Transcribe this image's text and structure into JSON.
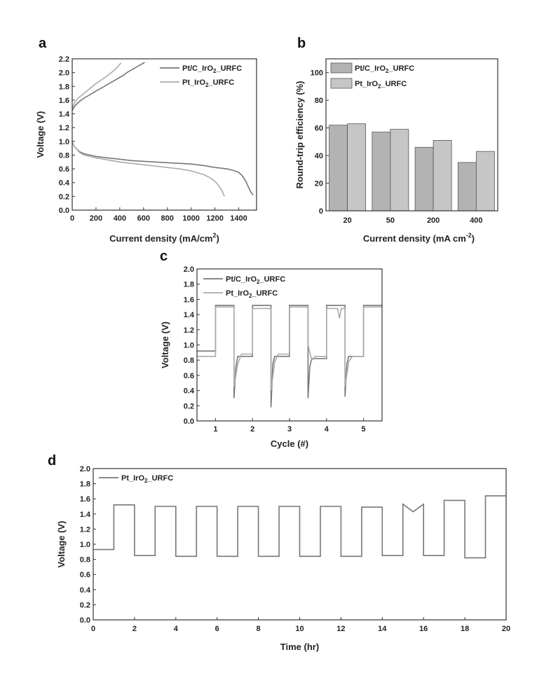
{
  "colors": {
    "series1": "#777777",
    "series2": "#aaaaaa",
    "bar1": "#b3b3b3",
    "bar2": "#c6c6c6",
    "axis": "#333333"
  },
  "chart_data": [
    {
      "id": "a",
      "panel_label": "a",
      "type": "line",
      "xlabel": "Current density (mA/cm",
      "xlabel_sup": "2",
      "ylabel": "Voltage (V)",
      "xlim": [
        0,
        1550
      ],
      "ylim": [
        0,
        2.2
      ],
      "xticks": [
        "0",
        "200",
        "400",
        "600",
        "800",
        "1000",
        "1200",
        "1400"
      ],
      "yticks": [
        "0.0",
        "0.2",
        "0.4",
        "0.6",
        "0.8",
        "1.0",
        "1.2",
        "1.4",
        "1.6",
        "1.8",
        "2.0",
        "2.2"
      ],
      "legend_position": "top-right",
      "series": [
        {
          "name_base": "Pt/C_IrO",
          "name_sub": "2",
          "name_suffix": "_URFC",
          "name": "Pt/C_IrO2_URFC",
          "color": "#777777",
          "segments": [
            {
              "x": [
                0,
                25,
                60,
                100,
                150,
                200,
                250,
                300,
                350,
                400,
                430,
                460,
                500,
                540,
                580,
                610
              ],
              "y": [
                1.45,
                1.52,
                1.58,
                1.63,
                1.68,
                1.73,
                1.78,
                1.83,
                1.88,
                1.93,
                1.96,
                2.0,
                2.04,
                2.08,
                2.12,
                2.15
              ]
            },
            {
              "x": [
                0,
                10,
                30,
                60,
                100,
                200,
                300,
                400,
                500,
                600,
                700,
                800,
                900,
                1000,
                1100,
                1200,
                1300,
                1350,
                1400,
                1430,
                1460,
                1480,
                1500,
                1520
              ],
              "y": [
                1.0,
                0.95,
                0.9,
                0.85,
                0.82,
                0.78,
                0.76,
                0.74,
                0.72,
                0.71,
                0.7,
                0.69,
                0.68,
                0.67,
                0.65,
                0.62,
                0.6,
                0.58,
                0.55,
                0.5,
                0.42,
                0.34,
                0.27,
                0.22
              ]
            }
          ]
        },
        {
          "name_base": "Pt_IrO",
          "name_sub": "2",
          "name_suffix": "_URFC",
          "name": "Pt_IrO2_URFC",
          "color": "#aaaaaa",
          "segments": [
            {
              "x": [
                0,
                20,
                50,
                100,
                150,
                200,
                250,
                300,
                350,
                380,
                410
              ],
              "y": [
                1.48,
                1.56,
                1.63,
                1.7,
                1.77,
                1.84,
                1.9,
                1.96,
                2.03,
                2.08,
                2.14
              ]
            },
            {
              "x": [
                0,
                10,
                30,
                60,
                100,
                200,
                300,
                400,
                500,
                600,
                700,
                800,
                900,
                1000,
                1100,
                1150,
                1200,
                1230,
                1260,
                1280
              ],
              "y": [
                1.0,
                0.95,
                0.9,
                0.84,
                0.8,
                0.76,
                0.73,
                0.7,
                0.68,
                0.66,
                0.64,
                0.62,
                0.6,
                0.57,
                0.52,
                0.48,
                0.42,
                0.36,
                0.28,
                0.2
              ]
            }
          ]
        }
      ]
    },
    {
      "id": "b",
      "panel_label": "b",
      "type": "bar",
      "xlabel": "Current density (mA cm",
      "xlabel_sup": "-2",
      "xlabel_close": ")",
      "ylabel": "Round-trip efficiency (%)",
      "categories": [
        "20",
        "50",
        "200",
        "400"
      ],
      "ylim": [
        0,
        110
      ],
      "yticks": [
        "0",
        "20",
        "40",
        "60",
        "80",
        "100"
      ],
      "legend_position": "top-left",
      "series": [
        {
          "name_base": "Pt/C_IrO",
          "name_sub": "2",
          "name_suffix": "_URFC",
          "name": "Pt/C_IrO2_URFC",
          "color": "#b3b3b3",
          "values": [
            62,
            57,
            46,
            35
          ]
        },
        {
          "name_base": "Pt_IrO",
          "name_sub": "2",
          "name_suffix": "_URFC",
          "name": "Pt_IrO2_URFC",
          "color": "#c6c6c6",
          "values": [
            63,
            59,
            51,
            43
          ]
        }
      ]
    },
    {
      "id": "c",
      "panel_label": "c",
      "type": "line",
      "xlabel": "Cycle (#)",
      "ylabel": "Voltage (V)",
      "xlim": [
        0.5,
        5.5
      ],
      "ylim": [
        0,
        2.0
      ],
      "xtick_values": [
        1,
        2,
        3,
        4,
        5
      ],
      "xticks": [
        "1",
        "2",
        "3",
        "4",
        "5"
      ],
      "yticks": [
        "0.0",
        "0.2",
        "0.4",
        "0.6",
        "0.8",
        "1.0",
        "1.2",
        "1.4",
        "1.6",
        "1.8",
        "2.0"
      ],
      "legend_position": "top-left",
      "series": [
        {
          "name_base": "Pt/C_IrO",
          "name_sub": "2",
          "name_suffix": "_URFC",
          "name": "Pt/C_IrO2_URFC",
          "color": "#777777",
          "x": [
            0.5,
            1.0,
            1.0,
            1.5,
            1.5,
            1.55,
            1.6,
            2.0,
            2.0,
            2.5,
            2.5,
            2.55,
            2.6,
            3.0,
            3.0,
            3.5,
            3.5,
            3.55,
            3.6,
            4.0,
            4.0,
            4.5,
            4.5,
            4.55,
            4.6,
            5.0,
            5.0,
            5.5
          ],
          "y": [
            0.92,
            0.92,
            1.52,
            1.52,
            0.3,
            0.7,
            0.85,
            0.85,
            1.52,
            1.52,
            0.18,
            0.75,
            0.85,
            0.85,
            1.52,
            1.52,
            0.3,
            0.72,
            0.82,
            0.82,
            1.52,
            1.52,
            0.32,
            0.75,
            0.85,
            0.85,
            1.52,
            1.52
          ]
        },
        {
          "name_base": "Pt_IrO",
          "name_sub": "2",
          "name_suffix": "_URFC",
          "name": "Pt_IrO2_URFC",
          "color": "#aaaaaa",
          "x": [
            0.5,
            1.0,
            1.0,
            1.5,
            1.5,
            1.6,
            1.7,
            2.0,
            2.0,
            2.5,
            2.5,
            2.6,
            2.7,
            3.0,
            3.0,
            3.5,
            3.5,
            3.6,
            3.7,
            4.0,
            4.0,
            4.3,
            4.35,
            4.4,
            4.5,
            4.5,
            4.6,
            4.7,
            5.0,
            5.0,
            5.5
          ],
          "y": [
            0.85,
            0.85,
            1.5,
            1.5,
            0.45,
            0.75,
            0.88,
            0.88,
            1.48,
            1.48,
            0.4,
            0.78,
            0.88,
            0.88,
            1.5,
            1.5,
            1.0,
            0.8,
            0.85,
            0.85,
            1.48,
            1.48,
            1.35,
            1.48,
            1.48,
            0.45,
            0.78,
            0.85,
            0.85,
            1.5,
            1.5
          ]
        }
      ]
    },
    {
      "id": "d",
      "panel_label": "d",
      "type": "line",
      "xlabel": "Time (hr)",
      "ylabel": "Voltage (V)",
      "xlim": [
        0,
        20
      ],
      "ylim": [
        0,
        2.0
      ],
      "xtick_values": [
        0,
        2,
        4,
        6,
        8,
        10,
        12,
        14,
        16,
        18,
        20
      ],
      "xticks": [
        "0",
        "2",
        "4",
        "6",
        "8",
        "10",
        "12",
        "14",
        "16",
        "18",
        "20"
      ],
      "yticks": [
        "0.0",
        "0.2",
        "0.4",
        "0.6",
        "0.8",
        "1.0",
        "1.2",
        "1.4",
        "1.6",
        "1.8",
        "2.0"
      ],
      "legend_position": "top-left",
      "series": [
        {
          "name_base": "Pt_IrO",
          "name_sub": "2",
          "name_suffix": "_URFC",
          "name": "Pt_IrO2_URFC",
          "color": "#777777",
          "x": [
            0,
            1,
            1,
            2,
            2,
            3,
            3,
            4,
            4,
            5,
            5,
            6,
            6,
            7,
            7,
            8,
            8,
            9,
            9,
            10,
            10,
            11,
            11,
            12,
            12,
            13,
            13,
            14,
            14,
            15,
            15,
            15.5,
            16,
            16,
            17,
            17,
            18,
            18,
            19,
            19,
            20
          ],
          "y": [
            0.93,
            0.93,
            1.52,
            1.52,
            0.85,
            0.85,
            1.5,
            1.5,
            0.84,
            0.84,
            1.5,
            1.5,
            0.84,
            0.84,
            1.5,
            1.5,
            0.84,
            0.84,
            1.5,
            1.5,
            0.84,
            0.84,
            1.5,
            1.5,
            0.84,
            0.84,
            1.49,
            1.49,
            0.85,
            0.85,
            1.53,
            1.43,
            1.53,
            0.85,
            0.85,
            1.58,
            1.58,
            0.82,
            0.82,
            1.64,
            1.64
          ]
        }
      ]
    }
  ]
}
